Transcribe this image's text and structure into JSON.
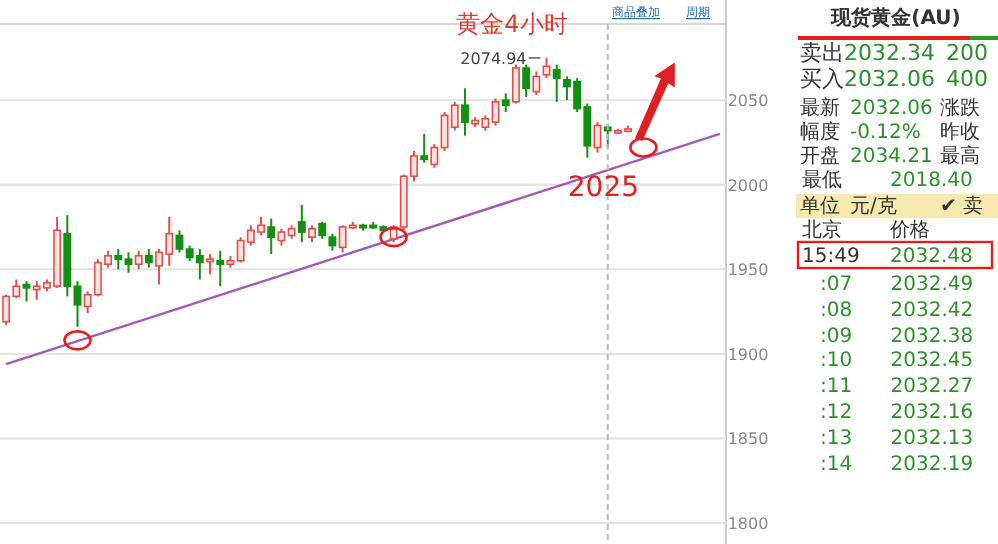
{
  "chart_data": [
    {
      "type": "candlestick",
      "title": "黄金4小时",
      "categories": [
        null,
        null,
        null,
        null,
        null,
        null,
        null,
        null,
        null,
        null,
        null,
        null,
        null,
        null,
        null,
        null,
        null,
        null,
        null,
        null,
        null,
        null,
        null,
        null,
        null,
        null,
        null,
        null,
        null,
        null,
        null,
        null,
        null,
        null,
        null,
        null,
        null,
        null,
        null,
        null,
        null,
        null,
        null,
        null,
        null,
        null,
        null,
        null,
        null,
        null,
        null,
        null,
        null,
        null,
        null,
        null,
        null,
        null,
        null,
        null,
        null,
        null,
        null,
        null,
        null,
        null,
        null,
        null,
        null,
        null,
        null
      ],
      "series": [
        {
          "type": "line",
          "color": "#a35bb5",
          "values": [
            1894,
            null,
            null,
            null,
            null,
            null,
            null,
            null,
            null,
            null,
            null,
            null,
            null,
            null,
            null,
            null,
            null,
            null,
            null,
            null,
            null,
            null,
            null,
            null,
            null,
            null,
            null,
            null,
            null,
            null,
            null,
            null,
            null,
            null,
            null,
            null,
            null,
            null,
            null,
            null,
            null,
            null,
            null,
            null,
            null,
            null,
            null,
            null,
            null,
            null,
            null,
            null,
            null,
            null,
            null,
            null,
            null,
            null,
            null,
            null,
            null,
            null,
            null,
            null,
            null,
            null,
            null,
            null,
            null,
            null,
            2030
          ]
        }
      ],
      "ohlc": [
        [
          1919,
          1935,
          1917,
          1934
        ],
        [
          1934,
          1944,
          1933,
          1940
        ],
        [
          1941,
          1943,
          1931,
          1939
        ],
        [
          1938,
          1943,
          1932,
          1940
        ],
        [
          1939,
          1944,
          1937,
          1942
        ],
        [
          1940,
          1981,
          1939,
          1973
        ],
        [
          1971,
          1982,
          1934,
          1940
        ],
        [
          1940,
          1943,
          1916,
          1929
        ],
        [
          1928,
          1937,
          1924,
          1935
        ],
        [
          1935,
          1956,
          1934,
          1954
        ],
        [
          1953,
          1961,
          1951,
          1958
        ],
        [
          1958,
          1962,
          1950,
          1956
        ],
        [
          1956,
          1960,
          1948,
          1953
        ],
        [
          1953,
          1961,
          1950,
          1958
        ],
        [
          1958,
          1962,
          1951,
          1954
        ],
        [
          1952,
          1962,
          1941,
          1960
        ],
        [
          1959,
          1981,
          1952,
          1971
        ],
        [
          1970,
          1973,
          1960,
          1962
        ],
        [
          1962,
          1964,
          1955,
          1957
        ],
        [
          1958,
          1962,
          1944,
          1954
        ],
        [
          1955,
          1959,
          1947,
          1956
        ],
        [
          1955,
          1961,
          1940,
          1953
        ],
        [
          1953,
          1958,
          1951,
          1955
        ],
        [
          1955,
          1969,
          1954,
          1967
        ],
        [
          1966,
          1976,
          1964,
          1973
        ],
        [
          1972,
          1981,
          1970,
          1976
        ],
        [
          1975,
          1980,
          1959,
          1969
        ],
        [
          1967,
          1974,
          1964,
          1972
        ],
        [
          1970,
          1976,
          1968,
          1974
        ],
        [
          1978,
          1988,
          1966,
          1972
        ],
        [
          1969,
          1976,
          1966,
          1974
        ],
        [
          1977,
          1978,
          1968,
          1970
        ],
        [
          1969,
          1971,
          1961,
          1964
        ],
        [
          1963,
          1976,
          1960,
          1975
        ],
        [
          1975,
          1978,
          1974,
          1976
        ],
        [
          1976,
          1977,
          1973,
          1975
        ],
        [
          1976,
          1978,
          1974,
          1975
        ],
        [
          1975,
          1976,
          1972,
          1973
        ],
        [
          1968,
          1976,
          1966,
          1975
        ],
        [
          1975,
          2006,
          1973,
          2005
        ],
        [
          2005,
          2020,
          2002,
          2017
        ],
        [
          2017,
          2030,
          2013,
          2015
        ],
        [
          2012,
          2024,
          2010,
          2022
        ],
        [
          2022,
          2043,
          2020,
          2041
        ],
        [
          2034,
          2049,
          2032,
          2047
        ],
        [
          2047,
          2057,
          2029,
          2037
        ],
        [
          2036,
          2040,
          2034,
          2038
        ],
        [
          2034,
          2041,
          2032,
          2039
        ],
        [
          2037,
          2051,
          2035,
          2049
        ],
        [
          2050,
          2054,
          2043,
          2047
        ],
        [
          2049,
          2071,
          2048,
          2069
        ],
        [
          2069,
          2071,
          2052,
          2057
        ],
        [
          2055,
          2067,
          2053,
          2064
        ],
        [
          2065,
          2074.94,
          2063,
          2070
        ],
        [
          2068,
          2071,
          2049,
          2063
        ],
        [
          2062,
          2064,
          2050,
          2058
        ],
        [
          2061,
          2063,
          2043,
          2045
        ],
        [
          2046,
          2048,
          2016,
          2023
        ],
        [
          2022,
          2037,
          2019,
          2035
        ],
        [
          2034,
          2036,
          2022,
          2032
        ],
        [
          2031,
          2033,
          2030,
          2032
        ],
        [
          2032,
          2035,
          2031,
          2033
        ],
        null,
        null,
        null,
        null,
        null,
        null,
        null,
        null,
        null
      ],
      "colors": [
        "#e0504a",
        "#e0504a",
        "#139013",
        "#e0504a",
        "#e0504a",
        "#e0504a",
        "#139013",
        "#139013",
        "#e0504a",
        "#e0504a",
        "#e0504a",
        "#139013",
        "#139013",
        "#e0504a",
        "#139013",
        "#e0504a",
        "#e0504a",
        "#139013",
        "#139013",
        "#139013",
        "#e0504a",
        "#139013",
        "#e0504a",
        "#e0504a",
        "#e0504a",
        "#e0504a",
        "#139013",
        "#e0504a",
        "#e0504a",
        "#139013",
        "#e0504a",
        "#139013",
        "#139013",
        "#e0504a",
        "#e0504a",
        "#139013",
        "#139013",
        "#139013",
        "#e0504a",
        "#e0504a",
        "#e0504a",
        "#139013",
        "#e0504a",
        "#e0504a",
        "#e0504a",
        "#139013",
        "#e0504a",
        "#e0504a",
        "#e0504a",
        "#139013",
        "#e0504a",
        "#139013",
        "#e0504a",
        "#e0504a",
        "#139013",
        "#139013",
        "#139013",
        "#139013",
        "#e0504a",
        "#139013",
        "#e0504a",
        "#e0504a",
        null,
        null,
        null,
        null,
        null,
        null,
        null,
        null,
        null
      ],
      "ylim": [
        1790,
        2095
      ],
      "yticks": [
        1800,
        1850,
        1900,
        1950,
        2000,
        2050
      ],
      "tick_labels": "y",
      "grid": "y",
      "annotations": [
        "2074.94",
        "2025",
        "商品叠加",
        "周期"
      ]
    },
    {
      "type": "other",
      "title": "现货黄金(AU)",
      "annotations": [
        "卖出",
        "2032.34",
        "200",
        "买入",
        "2032.06",
        "400",
        "最新",
        "2032.06",
        "涨跌",
        "幅度",
        "-0.12%",
        "昨收",
        "开盘",
        "2034.21",
        "最高",
        "最低",
        "2018.40",
        "单位",
        "元/克",
        "✔ 卖",
        "北京",
        "价格",
        "15:49",
        "2032.48",
        ":07 2032.49",
        ":08 2032.42",
        ":09 2032.38",
        ":10 2032.45",
        ":11 2032.27",
        ":12 2032.16",
        ":13 2032.13",
        ":14 2032.19"
      ]
    }
  ]
}
